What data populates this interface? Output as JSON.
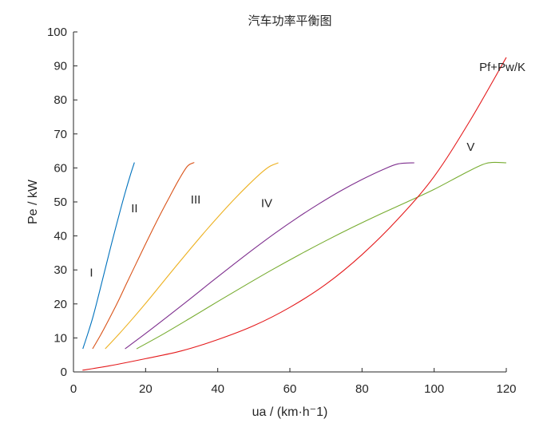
{
  "chart_data": {
    "type": "line",
    "title": "汽车功率平衡图",
    "xlabel": "ua / (km·h⁻1)",
    "ylabel": "Pe / kW",
    "xlim": [
      0,
      120
    ],
    "ylim": [
      0,
      100
    ],
    "x_ticks": [
      0,
      20,
      40,
      60,
      80,
      100,
      120
    ],
    "y_ticks": [
      0,
      10,
      20,
      30,
      40,
      50,
      60,
      70,
      80,
      90,
      100
    ],
    "grid": false,
    "series": [
      {
        "name": "I",
        "color": "#0072BD",
        "x": [
          2.6,
          3.9,
          5.3,
          6.6,
          7.9,
          9.2,
          10.5,
          11.8,
          13.1,
          14.4,
          15.8,
          16.9
        ],
        "y": [
          6.8,
          11.0,
          15.8,
          21.0,
          26.5,
          32.0,
          37.5,
          42.8,
          48.0,
          53.0,
          58.0,
          61.6
        ]
      },
      {
        "name": "II",
        "color": "#D95319",
        "x": [
          5.3,
          7.6,
          10.0,
          12.4,
          14.8,
          17.2,
          19.6,
          22.0,
          24.4,
          26.8,
          29.2,
          31.6,
          33.5
        ],
        "y": [
          6.8,
          11.0,
          15.8,
          20.8,
          26.2,
          31.5,
          36.8,
          42.0,
          47.0,
          51.8,
          56.5,
          60.5,
          61.6
        ]
      },
      {
        "name": "III",
        "color": "#EDB120",
        "x": [
          8.8,
          12.5,
          16.5,
          20.5,
          24.5,
          28.5,
          32.5,
          36.5,
          40.5,
          44.5,
          48.5,
          52.0,
          54.5,
          56.8
        ],
        "y": [
          6.8,
          11.0,
          15.8,
          20.8,
          26.0,
          31.2,
          36.3,
          41.3,
          46.1,
          50.7,
          55.0,
          58.5,
          60.5,
          61.5
        ]
      },
      {
        "name": "IV",
        "color": "#7E2F8E",
        "x": [
          14.3,
          20.0,
          26.0,
          32.0,
          38.0,
          44.0,
          50.0,
          56.0,
          62.0,
          68.0,
          74.0,
          80.0,
          86.0,
          90.0,
          94.5
        ],
        "y": [
          6.8,
          11.3,
          16.2,
          21.2,
          26.3,
          31.3,
          36.2,
          40.9,
          45.3,
          49.4,
          53.2,
          56.6,
          59.6,
          61.2,
          61.5
        ]
      },
      {
        "name": "V",
        "color": "#77AC30",
        "x": [
          17.5,
          25.0,
          32.5,
          40.0,
          47.5,
          55.0,
          62.5,
          70.0,
          77.5,
          85.0,
          92.5,
          100.0,
          107.5,
          113.0,
          116.0,
          120.0
        ],
        "y": [
          6.8,
          11.2,
          15.9,
          20.7,
          25.4,
          30.0,
          34.4,
          38.6,
          42.6,
          46.4,
          50.0,
          53.7,
          57.9,
          60.8,
          61.6,
          61.5
        ]
      },
      {
        "name": "Pf+Pw/K",
        "color": "#E41A1C",
        "x": [
          2.5,
          10,
          20,
          30,
          40,
          50,
          60,
          70,
          80,
          90,
          100,
          110,
          120
        ],
        "y": [
          0.5,
          1.8,
          3.9,
          6.2,
          9.5,
          13.6,
          19.0,
          25.8,
          34.5,
          45.0,
          57.5,
          74.0,
          92.5
        ]
      }
    ],
    "annotations": [
      {
        "text": "I",
        "x": 4.5,
        "y": 28
      },
      {
        "text": "II",
        "x": 16,
        "y": 47
      },
      {
        "text": "III",
        "x": 32.5,
        "y": 49.5
      },
      {
        "text": "IV",
        "x": 52,
        "y": 48.5
      },
      {
        "text": "V",
        "x": 109,
        "y": 65
      },
      {
        "text": "Pf+Pw/K",
        "x": 112.5,
        "y": 88.5
      }
    ]
  }
}
